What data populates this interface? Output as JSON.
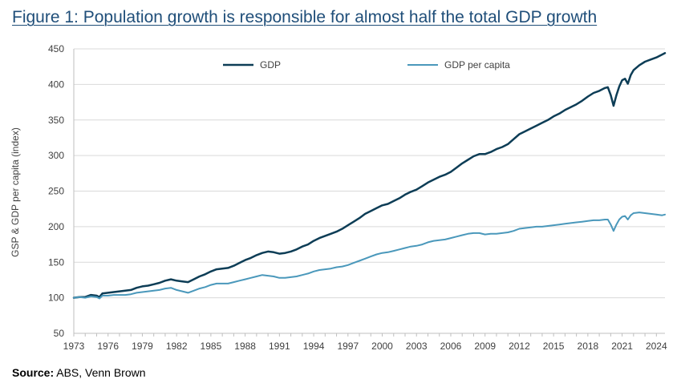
{
  "figure": {
    "title": "Figure 1: Population growth is responsible for almost half the total GDP growth",
    "source_label": "Source:",
    "source_text": " ABS, Venn Brown"
  },
  "chart_data": {
    "type": "line",
    "title": "Figure 1: Population growth is responsible for almost half the total GDP growth",
    "xlabel": "",
    "ylabel": "GSP & GDP per capita (index)",
    "xlim": [
      1973,
      2024.75
    ],
    "ylim": [
      50,
      450
    ],
    "yticks": [
      50,
      100,
      150,
      200,
      250,
      300,
      350,
      400,
      450
    ],
    "xticks": [
      "1973",
      "1976",
      "1979",
      "1982",
      "1985",
      "1988",
      "1991",
      "1994",
      "1997",
      "2000",
      "2003",
      "2006",
      "2009",
      "2012",
      "2015",
      "2018",
      "2021",
      "2024"
    ],
    "grid": "horizontal",
    "legend_position": "top",
    "series": [
      {
        "name": "GDP",
        "color": "#0d3d56",
        "points": [
          [
            1973.0,
            100
          ],
          [
            1973.5,
            101
          ],
          [
            1974.0,
            101
          ],
          [
            1974.5,
            104
          ],
          [
            1975.0,
            103
          ],
          [
            1975.25,
            101
          ],
          [
            1975.5,
            106
          ],
          [
            1976.0,
            107
          ],
          [
            1976.5,
            108
          ],
          [
            1977.0,
            109
          ],
          [
            1977.5,
            110
          ],
          [
            1978.0,
            111
          ],
          [
            1978.5,
            114
          ],
          [
            1979.0,
            116
          ],
          [
            1979.5,
            117
          ],
          [
            1980.0,
            119
          ],
          [
            1980.5,
            121
          ],
          [
            1981.0,
            124
          ],
          [
            1981.5,
            126
          ],
          [
            1982.0,
            124
          ],
          [
            1982.5,
            123
          ],
          [
            1983.0,
            122
          ],
          [
            1983.5,
            126
          ],
          [
            1984.0,
            130
          ],
          [
            1984.5,
            133
          ],
          [
            1985.0,
            137
          ],
          [
            1985.5,
            140
          ],
          [
            1986.0,
            141
          ],
          [
            1986.5,
            142
          ],
          [
            1987.0,
            145
          ],
          [
            1987.5,
            149
          ],
          [
            1988.0,
            153
          ],
          [
            1988.5,
            156
          ],
          [
            1989.0,
            160
          ],
          [
            1989.5,
            163
          ],
          [
            1990.0,
            165
          ],
          [
            1990.5,
            164
          ],
          [
            1991.0,
            162
          ],
          [
            1991.5,
            163
          ],
          [
            1992.0,
            165
          ],
          [
            1992.5,
            168
          ],
          [
            1993.0,
            172
          ],
          [
            1993.5,
            175
          ],
          [
            1994.0,
            180
          ],
          [
            1994.5,
            184
          ],
          [
            1995.0,
            187
          ],
          [
            1995.5,
            190
          ],
          [
            1996.0,
            193
          ],
          [
            1996.5,
            197
          ],
          [
            1997.0,
            202
          ],
          [
            1997.5,
            207
          ],
          [
            1998.0,
            212
          ],
          [
            1998.5,
            218
          ],
          [
            1999.0,
            222
          ],
          [
            1999.5,
            226
          ],
          [
            2000.0,
            230
          ],
          [
            2000.5,
            232
          ],
          [
            2001.0,
            236
          ],
          [
            2001.5,
            240
          ],
          [
            2002.0,
            245
          ],
          [
            2002.5,
            249
          ],
          [
            2003.0,
            252
          ],
          [
            2003.5,
            257
          ],
          [
            2004.0,
            262
          ],
          [
            2004.5,
            266
          ],
          [
            2005.0,
            270
          ],
          [
            2005.5,
            273
          ],
          [
            2006.0,
            277
          ],
          [
            2006.5,
            283
          ],
          [
            2007.0,
            289
          ],
          [
            2007.5,
            294
          ],
          [
            2008.0,
            299
          ],
          [
            2008.5,
            302
          ],
          [
            2009.0,
            302
          ],
          [
            2009.5,
            305
          ],
          [
            2010.0,
            309
          ],
          [
            2010.5,
            312
          ],
          [
            2011.0,
            316
          ],
          [
            2011.5,
            323
          ],
          [
            2012.0,
            330
          ],
          [
            2012.5,
            334
          ],
          [
            2013.0,
            338
          ],
          [
            2013.5,
            342
          ],
          [
            2014.0,
            346
          ],
          [
            2014.5,
            350
          ],
          [
            2015.0,
            355
          ],
          [
            2015.5,
            359
          ],
          [
            2016.0,
            364
          ],
          [
            2016.5,
            368
          ],
          [
            2017.0,
            372
          ],
          [
            2017.5,
            377
          ],
          [
            2018.0,
            383
          ],
          [
            2018.5,
            388
          ],
          [
            2019.0,
            391
          ],
          [
            2019.5,
            395
          ],
          [
            2019.75,
            396
          ],
          [
            2020.0,
            385
          ],
          [
            2020.25,
            370
          ],
          [
            2020.5,
            385
          ],
          [
            2020.75,
            397
          ],
          [
            2021.0,
            406
          ],
          [
            2021.25,
            408
          ],
          [
            2021.5,
            401
          ],
          [
            2021.75,
            413
          ],
          [
            2022.0,
            420
          ],
          [
            2022.5,
            427
          ],
          [
            2023.0,
            432
          ],
          [
            2023.5,
            435
          ],
          [
            2024.0,
            438
          ],
          [
            2024.5,
            442
          ],
          [
            2024.75,
            444
          ]
        ]
      },
      {
        "name": "GDP per capita",
        "color": "#4a98bb",
        "points": [
          [
            1973.0,
            100
          ],
          [
            1973.5,
            101
          ],
          [
            1974.0,
            100
          ],
          [
            1974.5,
            102
          ],
          [
            1975.0,
            101
          ],
          [
            1975.25,
            99
          ],
          [
            1975.5,
            103
          ],
          [
            1976.0,
            103
          ],
          [
            1976.5,
            104
          ],
          [
            1977.0,
            104
          ],
          [
            1977.5,
            104
          ],
          [
            1978.0,
            105
          ],
          [
            1978.5,
            107
          ],
          [
            1979.0,
            108
          ],
          [
            1979.5,
            109
          ],
          [
            1980.0,
            110
          ],
          [
            1980.5,
            111
          ],
          [
            1981.0,
            113
          ],
          [
            1981.5,
            114
          ],
          [
            1982.0,
            111
          ],
          [
            1982.5,
            109
          ],
          [
            1983.0,
            107
          ],
          [
            1983.5,
            110
          ],
          [
            1984.0,
            113
          ],
          [
            1984.5,
            115
          ],
          [
            1985.0,
            118
          ],
          [
            1985.5,
            120
          ],
          [
            1986.0,
            120
          ],
          [
            1986.5,
            120
          ],
          [
            1987.0,
            122
          ],
          [
            1987.5,
            124
          ],
          [
            1988.0,
            126
          ],
          [
            1988.5,
            128
          ],
          [
            1989.0,
            130
          ],
          [
            1989.5,
            132
          ],
          [
            1990.0,
            131
          ],
          [
            1990.5,
            130
          ],
          [
            1991.0,
            128
          ],
          [
            1991.5,
            128
          ],
          [
            1992.0,
            129
          ],
          [
            1992.5,
            130
          ],
          [
            1993.0,
            132
          ],
          [
            1993.5,
            134
          ],
          [
            1994.0,
            137
          ],
          [
            1994.5,
            139
          ],
          [
            1995.0,
            140
          ],
          [
            1995.5,
            141
          ],
          [
            1996.0,
            143
          ],
          [
            1996.5,
            144
          ],
          [
            1997.0,
            146
          ],
          [
            1997.5,
            149
          ],
          [
            1998.0,
            152
          ],
          [
            1998.5,
            155
          ],
          [
            1999.0,
            158
          ],
          [
            1999.5,
            161
          ],
          [
            2000.0,
            163
          ],
          [
            2000.5,
            164
          ],
          [
            2001.0,
            166
          ],
          [
            2001.5,
            168
          ],
          [
            2002.0,
            170
          ],
          [
            2002.5,
            172
          ],
          [
            2003.0,
            173
          ],
          [
            2003.5,
            175
          ],
          [
            2004.0,
            178
          ],
          [
            2004.5,
            180
          ],
          [
            2005.0,
            181
          ],
          [
            2005.5,
            182
          ],
          [
            2006.0,
            184
          ],
          [
            2006.5,
            186
          ],
          [
            2007.0,
            188
          ],
          [
            2007.5,
            190
          ],
          [
            2008.0,
            191
          ],
          [
            2008.5,
            191
          ],
          [
            2009.0,
            189
          ],
          [
            2009.5,
            190
          ],
          [
            2010.0,
            190
          ],
          [
            2010.5,
            191
          ],
          [
            2011.0,
            192
          ],
          [
            2011.5,
            194
          ],
          [
            2012.0,
            197
          ],
          [
            2012.5,
            198
          ],
          [
            2013.0,
            199
          ],
          [
            2013.5,
            200
          ],
          [
            2014.0,
            200
          ],
          [
            2014.5,
            201
          ],
          [
            2015.0,
            202
          ],
          [
            2015.5,
            203
          ],
          [
            2016.0,
            204
          ],
          [
            2016.5,
            205
          ],
          [
            2017.0,
            206
          ],
          [
            2017.5,
            207
          ],
          [
            2018.0,
            208
          ],
          [
            2018.5,
            209
          ],
          [
            2019.0,
            209
          ],
          [
            2019.5,
            210
          ],
          [
            2019.75,
            210
          ],
          [
            2020.0,
            203
          ],
          [
            2020.25,
            194
          ],
          [
            2020.5,
            203
          ],
          [
            2020.75,
            210
          ],
          [
            2021.0,
            214
          ],
          [
            2021.25,
            215
          ],
          [
            2021.5,
            210
          ],
          [
            2021.75,
            216
          ],
          [
            2022.0,
            219
          ],
          [
            2022.5,
            220
          ],
          [
            2023.0,
            219
          ],
          [
            2023.5,
            218
          ],
          [
            2024.0,
            217
          ],
          [
            2024.5,
            216
          ],
          [
            2024.75,
            217
          ]
        ]
      }
    ]
  }
}
